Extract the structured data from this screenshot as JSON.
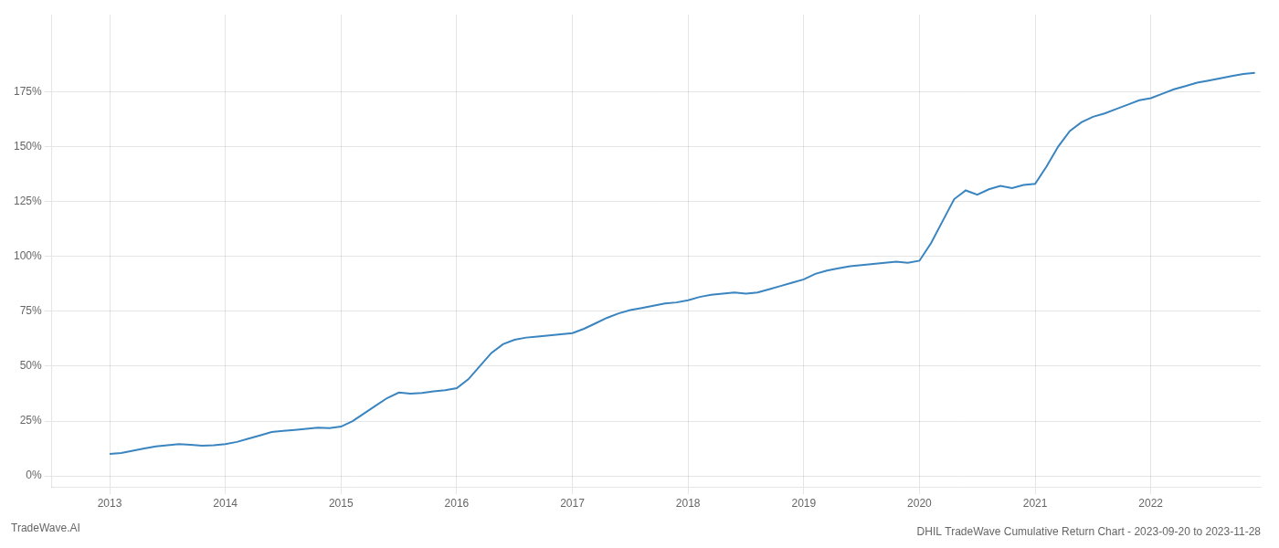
{
  "chart_data": {
    "type": "line",
    "title": "DHIL TradeWave Cumulative Return Chart - 2023-09-20 to 2023-11-28",
    "annotations": [
      "TradeWave.AI"
    ],
    "color": "#3a85c0",
    "grid": true,
    "x": [
      2013.0,
      2013.1,
      2013.2,
      2013.3,
      2013.4,
      2013.5,
      2013.6,
      2013.7,
      2013.8,
      2013.9,
      2014.0,
      2014.1,
      2014.2,
      2014.3,
      2014.4,
      2014.5,
      2014.6,
      2014.7,
      2014.8,
      2014.9,
      2015.0,
      2015.1,
      2015.2,
      2015.3,
      2015.4,
      2015.5,
      2015.6,
      2015.7,
      2015.8,
      2015.9,
      2016.0,
      2016.1,
      2016.2,
      2016.3,
      2016.4,
      2016.5,
      2016.6,
      2016.7,
      2016.8,
      2016.9,
      2017.0,
      2017.1,
      2017.2,
      2017.3,
      2017.4,
      2017.5,
      2017.6,
      2017.7,
      2017.8,
      2017.9,
      2018.0,
      2018.1,
      2018.2,
      2018.3,
      2018.4,
      2018.5,
      2018.6,
      2018.7,
      2018.8,
      2018.9,
      2019.0,
      2019.1,
      2019.2,
      2019.3,
      2019.4,
      2019.5,
      2019.6,
      2019.7,
      2019.8,
      2019.9,
      2020.0,
      2020.1,
      2020.2,
      2020.3,
      2020.4,
      2020.5,
      2020.6,
      2020.7,
      2020.8,
      2020.9,
      2021.0,
      2021.1,
      2021.2,
      2021.3,
      2021.4,
      2021.5,
      2021.6,
      2021.7,
      2021.8,
      2021.9,
      2022.0,
      2022.1,
      2022.2,
      2022.3,
      2022.4,
      2022.5,
      2022.6,
      2022.7,
      2022.8,
      2022.9
    ],
    "values": [
      10.0,
      10.5,
      11.5,
      12.5,
      13.5,
      14.0,
      14.5,
      14.2,
      13.8,
      14.0,
      14.5,
      15.5,
      17.0,
      18.5,
      20.0,
      20.5,
      21.0,
      21.5,
      22.0,
      21.8,
      22.5,
      25.0,
      28.5,
      32.0,
      35.5,
      38.0,
      37.5,
      37.8,
      38.5,
      39.0,
      40.0,
      44.0,
      50.0,
      56.0,
      60.0,
      62.0,
      63.0,
      63.5,
      64.0,
      64.5,
      65.0,
      67.0,
      69.5,
      72.0,
      74.0,
      75.5,
      76.5,
      77.5,
      78.5,
      79.0,
      80.0,
      81.5,
      82.5,
      83.0,
      83.5,
      83.0,
      83.5,
      85.0,
      86.5,
      88.0,
      89.5,
      92.0,
      93.5,
      94.5,
      95.5,
      96.0,
      96.5,
      97.0,
      97.5,
      97.0,
      98.0,
      106.0,
      116.0,
      126.0,
      130.0,
      128.0,
      130.5,
      132.0,
      131.0,
      132.5,
      133.0,
      141.0,
      150.0,
      157.0,
      161.0,
      163.5,
      165.0,
      167.0,
      169.0,
      171.0,
      172.0,
      174.0,
      176.0,
      177.5,
      179.0,
      180.0,
      181.0,
      182.0,
      183.0,
      183.5
    ],
    "xlim": [
      2012.5,
      2022.95
    ],
    "ylim": [
      -5,
      210
    ],
    "xticks": [
      2013,
      2014,
      2015,
      2016,
      2017,
      2018,
      2019,
      2020,
      2021,
      2022
    ],
    "yticks": [
      {
        "value": 0,
        "label": "0%"
      },
      {
        "value": 25,
        "label": "25%"
      },
      {
        "value": 50,
        "label": "50%"
      },
      {
        "value": 75,
        "label": "75%"
      },
      {
        "value": 100,
        "label": "100%"
      },
      {
        "value": 125,
        "label": "125%"
      },
      {
        "value": 150,
        "label": "150%"
      },
      {
        "value": 175,
        "label": "175%"
      }
    ]
  }
}
